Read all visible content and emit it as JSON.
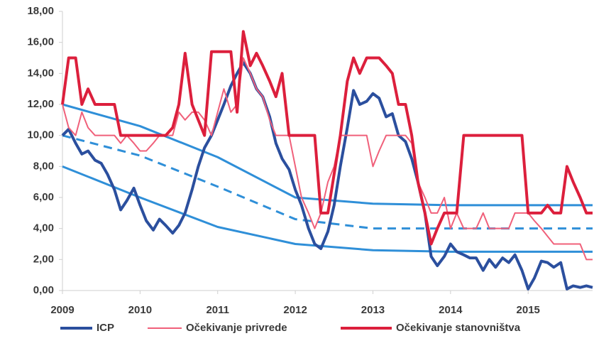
{
  "chart_data": {
    "type": "line",
    "x": [
      2009,
      2009.08,
      2009.17,
      2009.25,
      2009.33,
      2009.42,
      2009.5,
      2009.58,
      2009.67,
      2009.75,
      2009.83,
      2009.92,
      2010,
      2010.08,
      2010.17,
      2010.25,
      2010.33,
      2010.42,
      2010.5,
      2010.58,
      2010.67,
      2010.75,
      2010.83,
      2010.92,
      2011,
      2011.08,
      2011.17,
      2011.25,
      2011.33,
      2011.42,
      2011.5,
      2011.58,
      2011.67,
      2011.75,
      2011.83,
      2011.92,
      2012,
      2012.08,
      2012.17,
      2012.25,
      2012.33,
      2012.42,
      2012.5,
      2012.58,
      2012.67,
      2012.75,
      2012.83,
      2012.92,
      2013,
      2013.08,
      2013.17,
      2013.25,
      2013.33,
      2013.42,
      2013.5,
      2013.58,
      2013.67,
      2013.75,
      2013.83,
      2013.92,
      2014,
      2014.08,
      2014.17,
      2014.25,
      2014.33,
      2014.42,
      2014.5,
      2014.58,
      2014.67,
      2014.75,
      2014.83,
      2014.92,
      2015,
      2015.08,
      2015.17,
      2015.25,
      2015.33,
      2015.42,
      2015.5,
      2015.58,
      2015.67,
      2015.75,
      2015.83
    ],
    "series": [
      {
        "name": "ICP",
        "color": "#2b4f9e",
        "width": 4,
        "values": [
          10.0,
          10.4,
          9.5,
          8.8,
          9.0,
          8.4,
          8.2,
          7.5,
          6.5,
          5.2,
          5.8,
          6.6,
          5.5,
          4.5,
          3.9,
          4.6,
          4.2,
          3.7,
          4.2,
          5.0,
          6.5,
          8.0,
          9.2,
          10.0,
          11.0,
          12.0,
          13.2,
          14.0,
          14.7,
          14.0,
          13.0,
          12.5,
          11.2,
          9.5,
          8.5,
          7.8,
          6.5,
          5.5,
          4.0,
          3.0,
          2.7,
          3.8,
          5.5,
          8.0,
          10.5,
          12.9,
          12.0,
          12.2,
          12.7,
          12.4,
          11.2,
          11.4,
          10.0,
          9.6,
          8.5,
          7.0,
          5.0,
          2.2,
          1.6,
          2.2,
          3.0,
          2.5,
          2.3,
          2.1,
          2.1,
          1.3,
          2.0,
          1.5,
          2.1,
          1.8,
          2.3,
          1.3,
          0.1,
          0.8,
          1.9,
          1.8,
          1.5,
          1.8,
          0.1,
          0.3,
          0.2,
          0.3,
          0.2
        ]
      },
      {
        "name": "Očekivanje privrede",
        "color": "#f0607a",
        "width": 2,
        "values": [
          12,
          10.5,
          10,
          11.5,
          10.5,
          10,
          10,
          10,
          10,
          9.5,
          10,
          9.5,
          9,
          9,
          9.5,
          10,
          10,
          10,
          11.5,
          11,
          11.5,
          11.5,
          11,
          10,
          11.5,
          13,
          11.5,
          12,
          15,
          14,
          13,
          12.5,
          11,
          10,
          10,
          10,
          8,
          6,
          5,
          4,
          5,
          7,
          8,
          10,
          10,
          10,
          10,
          10,
          8,
          9,
          10,
          10,
          10,
          10,
          9.5,
          7,
          6,
          5,
          5,
          6,
          4,
          5,
          4,
          4,
          4,
          5,
          4,
          4,
          4,
          4,
          5,
          5,
          5,
          4.5,
          4,
          3.5,
          3,
          3,
          3,
          3,
          3,
          2,
          2
        ]
      },
      {
        "name": "Očekivanje stanovništva",
        "color": "#dc1f3c",
        "width": 4,
        "values": [
          12,
          15,
          15,
          12,
          13,
          12,
          12,
          12,
          12,
          10,
          10,
          10,
          10,
          10,
          10,
          10,
          10,
          10.5,
          12,
          15.3,
          12,
          11,
          10,
          15.4,
          15.4,
          15.4,
          15.4,
          11.5,
          16.7,
          14.5,
          15.3,
          14.5,
          13.5,
          12.5,
          14,
          10,
          10,
          10,
          10,
          10,
          5,
          5,
          7.5,
          10,
          13.5,
          15,
          14,
          15,
          15,
          15,
          14.5,
          14,
          12,
          12,
          10,
          7,
          5,
          3,
          4,
          5,
          5,
          5,
          10,
          10,
          10,
          10,
          10,
          10,
          10,
          10,
          10,
          10,
          5,
          5,
          5,
          5.5,
          5,
          5,
          8,
          7,
          6,
          5,
          5
        ]
      }
    ],
    "band_x": [
      2009,
      2010,
      2011,
      2012,
      2013,
      2014,
      2015,
      2015.83
    ],
    "bands": [
      {
        "color": "#2f8fd8",
        "dashed": false,
        "values": [
          12,
          10.6,
          8.6,
          6.0,
          5.6,
          5.5,
          5.5,
          5.5
        ]
      },
      {
        "color": "#2f8fd8",
        "dashed": true,
        "values": [
          10,
          8.7,
          6.7,
          4.6,
          4.0,
          4.0,
          4.0,
          4.0
        ]
      },
      {
        "color": "#2f8fd8",
        "dashed": false,
        "values": [
          8,
          6.0,
          4.1,
          3.0,
          2.6,
          2.5,
          2.5,
          2.5
        ]
      }
    ],
    "xlim": [
      2009,
      2015.83
    ],
    "xticks": [
      2009,
      2010,
      2011,
      2012,
      2013,
      2014,
      2015
    ],
    "ylim": [
      0,
      18
    ],
    "yticks": [
      {
        "value": 0,
        "label": "0,00"
      },
      {
        "value": 2,
        "label": "2,00"
      },
      {
        "value": 4,
        "label": "4,00"
      },
      {
        "value": 6,
        "label": "6,00"
      },
      {
        "value": 8,
        "label": "8,00"
      },
      {
        "value": 10,
        "label": "10,00"
      },
      {
        "value": 12,
        "label": "12,00"
      },
      {
        "value": 14,
        "label": "14,00"
      },
      {
        "value": 16,
        "label": "16,00"
      },
      {
        "value": 18,
        "label": "18,00"
      }
    ],
    "grid": false,
    "legend": "bottom"
  }
}
